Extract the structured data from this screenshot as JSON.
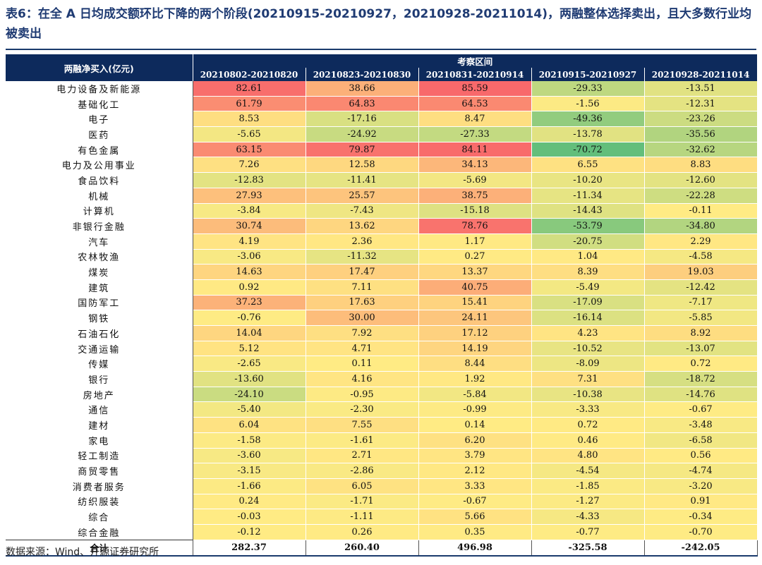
{
  "title": "表6：在全 A 日均成交额环比下降的两个阶段(20210915-20210927，20210928-20211014)，两融整体选择卖出，且大多数行业均被卖出",
  "header": {
    "row_label": "两融净买入(亿元)",
    "group_label": "考察区间",
    "periods": [
      "20210802-20210820",
      "20210823-20210830",
      "20210831-20210914",
      "20210915-20210927",
      "20210928-20211014"
    ]
  },
  "rows": [
    {
      "label": "电力设备及新能源",
      "values": [
        "82.61",
        "38.66",
        "85.59",
        "-29.33",
        "-13.51"
      ]
    },
    {
      "label": "基础化工",
      "values": [
        "61.79",
        "64.83",
        "64.53",
        "-1.56",
        "-12.31"
      ]
    },
    {
      "label": "电子",
      "values": [
        "8.53",
        "-17.16",
        "8.47",
        "-49.36",
        "-23.26"
      ]
    },
    {
      "label": "医药",
      "values": [
        "-5.65",
        "-24.92",
        "-27.33",
        "-13.78",
        "-35.56"
      ]
    },
    {
      "label": "有色金属",
      "values": [
        "63.15",
        "79.87",
        "84.11",
        "-70.72",
        "-32.62"
      ]
    },
    {
      "label": "电力及公用事业",
      "values": [
        "7.26",
        "12.58",
        "34.13",
        "6.55",
        "8.83"
      ]
    },
    {
      "label": "食品饮料",
      "values": [
        "-12.83",
        "-11.41",
        "-5.69",
        "-10.20",
        "-12.60"
      ]
    },
    {
      "label": "机械",
      "values": [
        "27.93",
        "25.57",
        "38.75",
        "-11.34",
        "-22.28"
      ]
    },
    {
      "label": "计算机",
      "values": [
        "-3.84",
        "-7.43",
        "-15.18",
        "-14.43",
        "-0.11"
      ]
    },
    {
      "label": "非银行金融",
      "values": [
        "30.74",
        "13.62",
        "78.76",
        "-53.79",
        "-34.80"
      ]
    },
    {
      "label": "汽车",
      "values": [
        "4.19",
        "2.36",
        "1.17",
        "-20.75",
        "2.29"
      ]
    },
    {
      "label": "农林牧渔",
      "values": [
        "-3.06",
        "-11.32",
        "0.27",
        "1.04",
        "-4.58"
      ]
    },
    {
      "label": "煤炭",
      "values": [
        "14.63",
        "17.47",
        "13.37",
        "8.39",
        "19.03"
      ]
    },
    {
      "label": "建筑",
      "values": [
        "0.92",
        "7.11",
        "40.75",
        "-5.49",
        "-12.42"
      ]
    },
    {
      "label": "国防军工",
      "values": [
        "37.23",
        "17.63",
        "15.41",
        "-17.09",
        "-7.17"
      ]
    },
    {
      "label": "钢铁",
      "values": [
        "-0.76",
        "30.00",
        "24.11",
        "-16.14",
        "-5.85"
      ]
    },
    {
      "label": "石油石化",
      "values": [
        "14.04",
        "7.92",
        "17.12",
        "4.23",
        "8.92"
      ]
    },
    {
      "label": "交通运输",
      "values": [
        "5.12",
        "4.71",
        "14.19",
        "-10.52",
        "-13.07"
      ]
    },
    {
      "label": "传媒",
      "values": [
        "-2.65",
        "0.11",
        "8.44",
        "-8.09",
        "0.72"
      ]
    },
    {
      "label": "银行",
      "values": [
        "-13.60",
        "4.16",
        "1.92",
        "7.31",
        "-18.72"
      ]
    },
    {
      "label": "房地产",
      "values": [
        "-24.10",
        "-0.95",
        "-5.84",
        "-10.38",
        "-14.76"
      ]
    },
    {
      "label": "通信",
      "values": [
        "-5.40",
        "-2.30",
        "-0.99",
        "-3.33",
        "-0.67"
      ]
    },
    {
      "label": "建材",
      "values": [
        "6.04",
        "7.55",
        "0.14",
        "0.72",
        "-3.48"
      ]
    },
    {
      "label": "家电",
      "values": [
        "-1.58",
        "-1.61",
        "6.20",
        "0.46",
        "-6.58"
      ]
    },
    {
      "label": "轻工制造",
      "values": [
        "-3.60",
        "2.71",
        "3.79",
        "4.80",
        "0.56"
      ]
    },
    {
      "label": "商贸零售",
      "values": [
        "-3.15",
        "-2.86",
        "2.12",
        "-4.54",
        "-4.74"
      ]
    },
    {
      "label": "消费者服务",
      "values": [
        "-1.66",
        "6.05",
        "3.33",
        "-1.85",
        "-3.20"
      ]
    },
    {
      "label": "纺织服装",
      "values": [
        "0.24",
        "-1.71",
        "-0.67",
        "-1.27",
        "0.91"
      ]
    },
    {
      "label": "综合",
      "values": [
        "-0.03",
        "-1.11",
        "5.66",
        "-4.33",
        "-0.34"
      ]
    },
    {
      "label": "综合金融",
      "values": [
        "-0.12",
        "0.26",
        "0.35",
        "-0.77",
        "-0.70"
      ]
    }
  ],
  "total": {
    "label": "合计",
    "values": [
      "282.37",
      "260.40",
      "496.98",
      "-325.58",
      "-242.05"
    ]
  },
  "source": "数据来源：Wind、开源证券研究所",
  "colors": {
    "heat_high": "#f8696b",
    "heat_mid": "#ffeb84",
    "heat_low": "#63be7b",
    "header_bg": "#0d2a5c",
    "title": "#1f3b73"
  }
}
